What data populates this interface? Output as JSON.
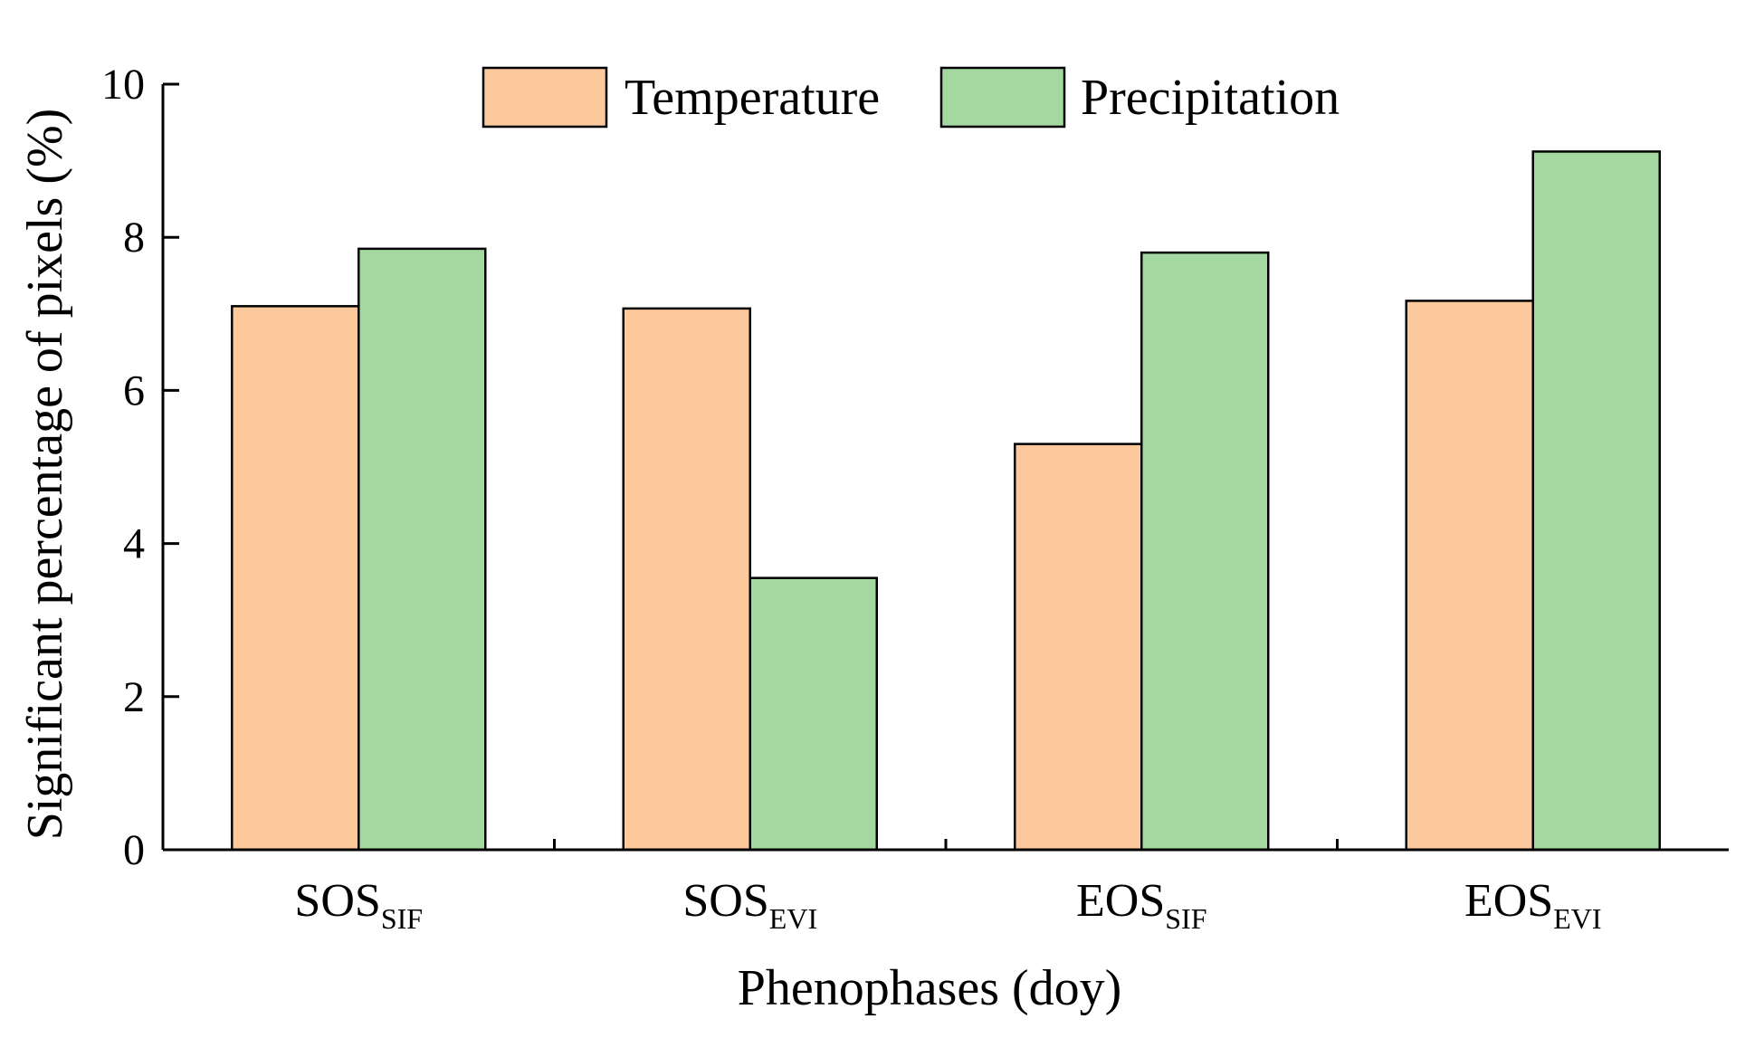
{
  "chart_data": {
    "type": "bar",
    "title": "",
    "xlabel": "Phenophases (doy)",
    "ylabel": "Significant percentage of pixels (%)",
    "ylim": [
      0,
      10
    ],
    "yticks": [
      0,
      2,
      4,
      6,
      8,
      10
    ],
    "grid": false,
    "legend_position": "top-center",
    "categories": [
      {
        "base": "SOS",
        "sub": "SIF"
      },
      {
        "base": "SOS",
        "sub": "EVI"
      },
      {
        "base": "EOS",
        "sub": "SIF"
      },
      {
        "base": "EOS",
        "sub": "EVI"
      }
    ],
    "series": [
      {
        "name": "Temperature",
        "color": "#FCC99C",
        "values": [
          7.1,
          7.07,
          5.3,
          7.17
        ]
      },
      {
        "name": "Precipitation",
        "color": "#A4D8A0",
        "values": [
          7.85,
          3.55,
          7.8,
          9.12
        ]
      }
    ]
  }
}
